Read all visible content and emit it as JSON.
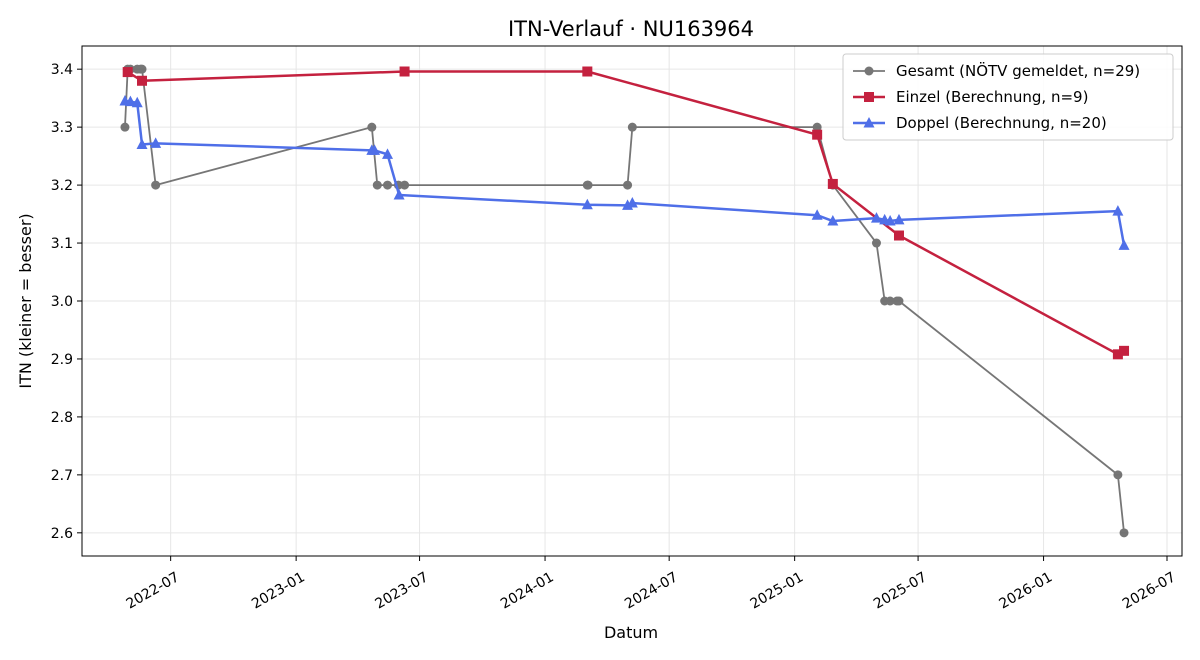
{
  "chart_data": {
    "type": "line",
    "title": "ITN-Verlauf · NU163964",
    "xlabel": "Datum",
    "ylabel": "ITN  (kleiner = besser)",
    "ylim": [
      2.56,
      3.44
    ],
    "xlim": [
      "2022-02-21",
      "2026-07-23"
    ],
    "x_ticks": [
      "2022-07",
      "2023-01",
      "2023-07",
      "2024-01",
      "2024-07",
      "2025-01",
      "2025-07",
      "2026-01",
      "2026-07"
    ],
    "y_ticks": [
      "2.6",
      "2.7",
      "2.8",
      "2.9",
      "3.0",
      "3.1",
      "3.2",
      "3.3",
      "3.4"
    ],
    "grid": true,
    "legend_position": "top-right",
    "series": [
      {
        "name": "Gesamt (NÖTV gemeldet, n=29)",
        "color": "#555555",
        "marker": "circle",
        "points": [
          [
            "2022-04-25",
            3.3
          ],
          [
            "2022-04-29",
            3.4
          ],
          [
            "2022-05-03",
            3.4
          ],
          [
            "2022-05-13",
            3.4
          ],
          [
            "2022-05-18",
            3.4
          ],
          [
            "2022-05-20",
            3.4
          ],
          [
            "2022-06-09",
            3.2
          ],
          [
            "2023-04-22",
            3.3
          ],
          [
            "2023-04-30",
            3.2
          ],
          [
            "2023-05-15",
            3.2
          ],
          [
            "2023-05-31",
            3.2
          ],
          [
            "2023-06-09",
            3.2
          ],
          [
            "2024-03-03",
            3.2
          ],
          [
            "2024-03-04",
            3.2
          ],
          [
            "2024-05-01",
            3.2
          ],
          [
            "2024-05-08",
            3.3
          ],
          [
            "2025-02-03",
            3.3
          ],
          [
            "2025-02-26",
            3.2
          ],
          [
            "2025-05-01",
            3.1
          ],
          [
            "2025-05-13",
            3.0
          ],
          [
            "2025-05-21",
            3.0
          ],
          [
            "2025-05-31",
            3.0
          ],
          [
            "2025-06-03",
            3.0
          ],
          [
            "2026-04-20",
            2.7
          ],
          [
            "2026-04-29",
            2.6
          ]
        ]
      },
      {
        "name": "Einzel (Berechnung, n=9)",
        "color": "#c4213f",
        "marker": "square",
        "points": [
          [
            "2022-04-29",
            3.395
          ],
          [
            "2022-05-20",
            3.38
          ],
          [
            "2023-06-09",
            3.396
          ],
          [
            "2024-03-03",
            3.396
          ],
          [
            "2025-02-03",
            3.287
          ],
          [
            "2025-02-26",
            3.202
          ],
          [
            "2025-06-03",
            3.113
          ],
          [
            "2026-04-20",
            2.908
          ],
          [
            "2026-04-29",
            2.914
          ]
        ]
      },
      {
        "name": "Doppel (Berechnung, n=20)",
        "color": "#4f6fe8",
        "marker": "triangle",
        "points": [
          [
            "2022-04-25",
            3.345
          ],
          [
            "2022-05-03",
            3.344
          ],
          [
            "2022-05-13",
            3.342
          ],
          [
            "2022-05-20",
            3.27
          ],
          [
            "2022-06-09",
            3.272
          ],
          [
            "2023-04-22",
            3.26
          ],
          [
            "2023-04-26",
            3.26
          ],
          [
            "2023-05-15",
            3.253
          ],
          [
            "2023-06-01",
            3.183
          ],
          [
            "2024-03-03",
            3.166
          ],
          [
            "2024-05-01",
            3.165
          ],
          [
            "2024-05-08",
            3.169
          ],
          [
            "2025-02-03",
            3.148
          ],
          [
            "2025-02-26",
            3.138
          ],
          [
            "2025-05-01",
            3.143
          ],
          [
            "2025-05-13",
            3.14
          ],
          [
            "2025-05-21",
            3.138
          ],
          [
            "2025-06-03",
            3.14
          ],
          [
            "2026-04-20",
            3.155
          ],
          [
            "2026-04-29",
            3.096
          ]
        ]
      }
    ]
  }
}
